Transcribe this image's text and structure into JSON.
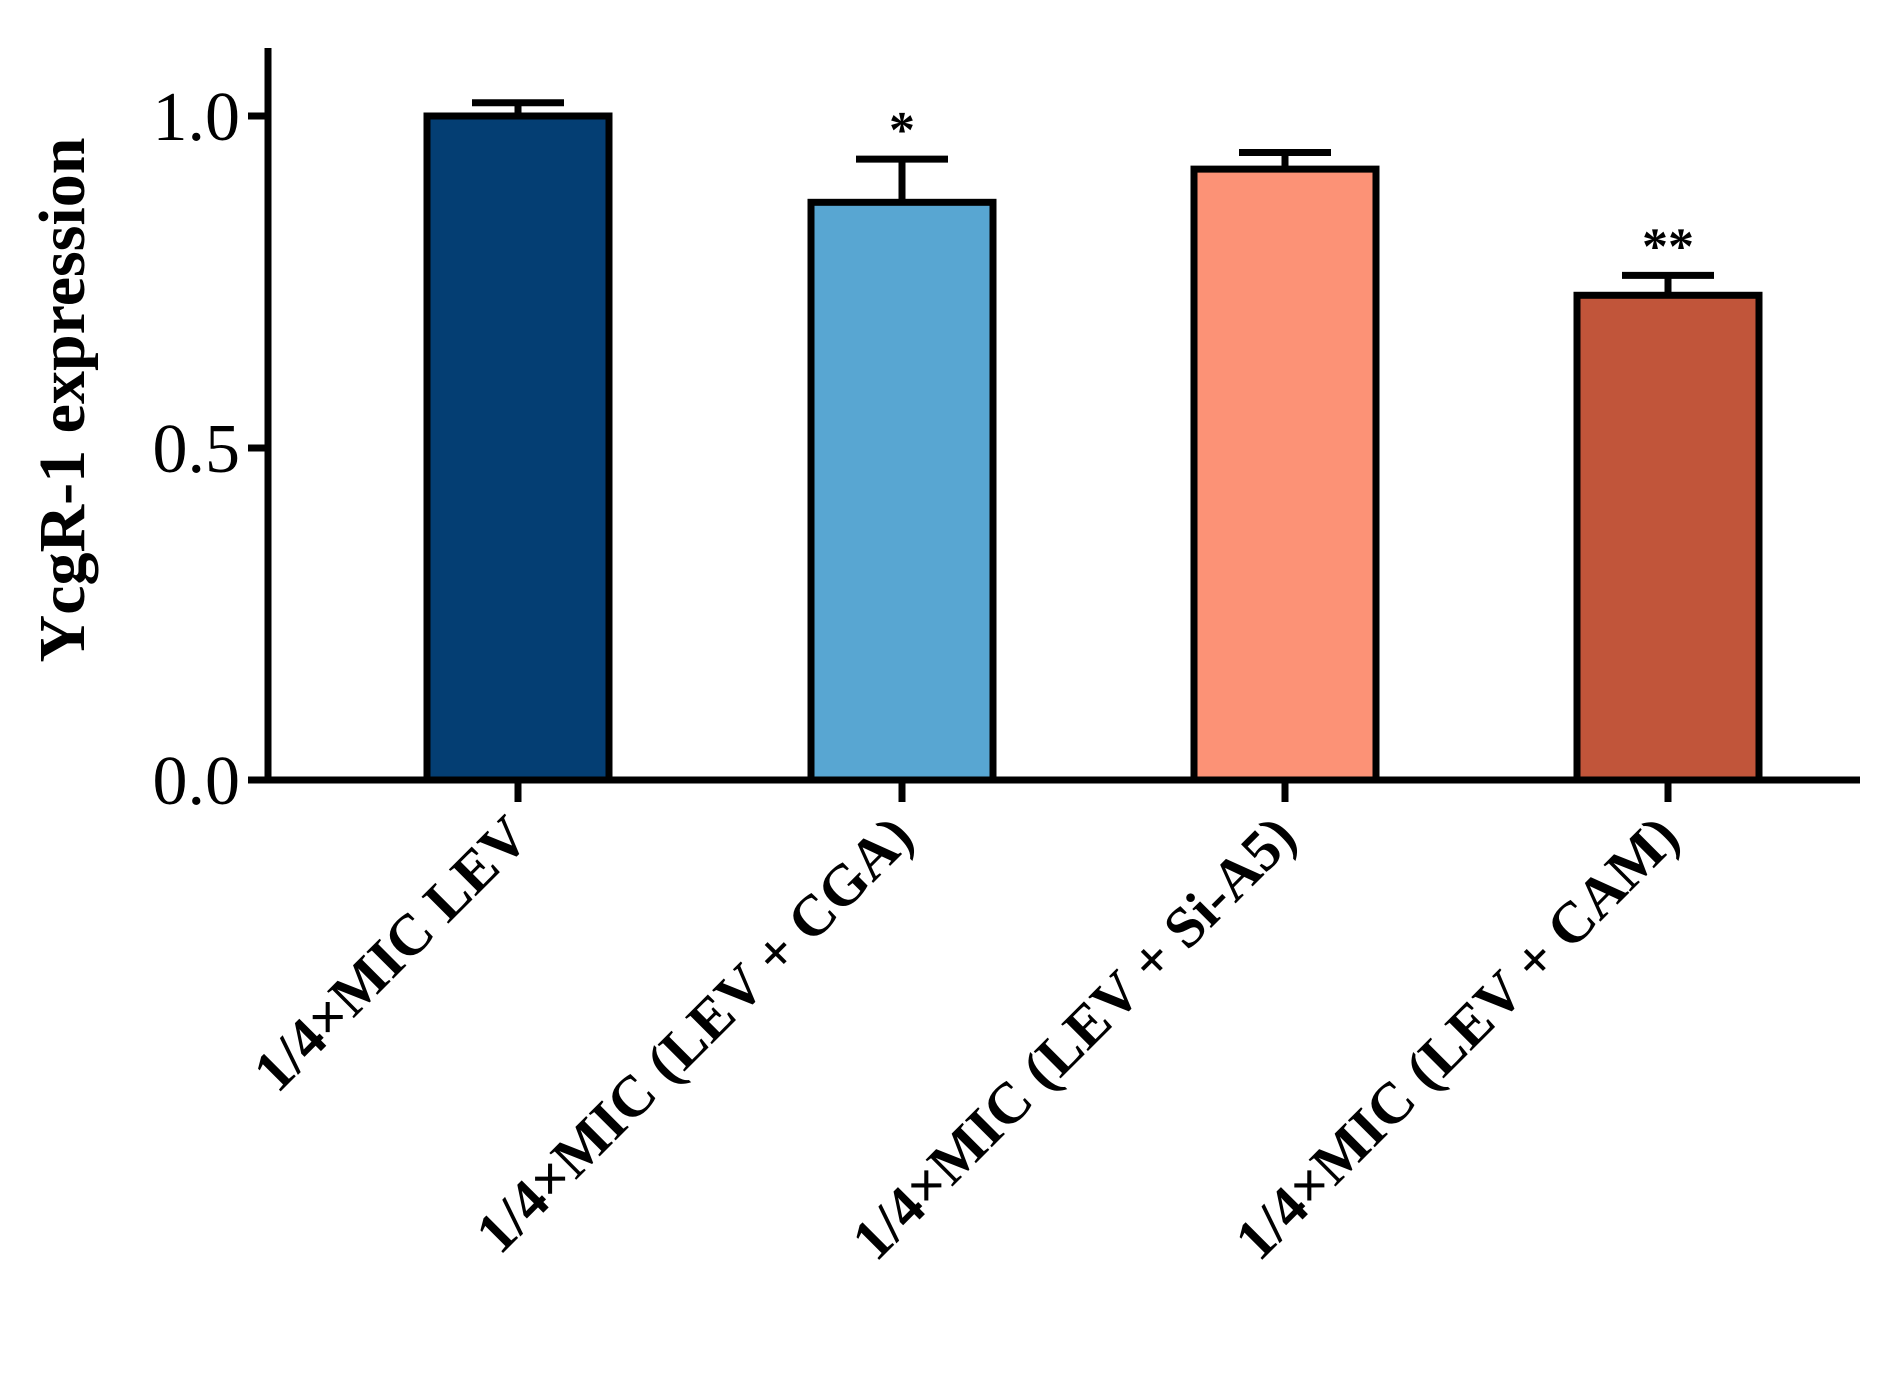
{
  "chart_data": {
    "type": "bar",
    "ylabel": "YcgR-1 expression",
    "xlabel": "",
    "ylim": [
      0,
      1.1
    ],
    "yticks": [
      0.0,
      0.5,
      1.0
    ],
    "ytick_labels": [
      "0.0",
      "0.5",
      "1.0"
    ],
    "categories": [
      "1/4×MIC LEV",
      "1/4×MIC (LEV + CGA)",
      "1/4×MIC (LEV + Si-A5)",
      "1/4×MIC (LEV + CAM)"
    ],
    "values": [
      1.0,
      0.87,
      0.92,
      0.73
    ],
    "errors": [
      0.02,
      0.065,
      0.025,
      0.03
    ],
    "significance": [
      "",
      "*",
      "",
      "**"
    ],
    "colors": [
      "#043e73",
      "#58a6d2",
      "#fc9276",
      "#c1553a"
    ],
    "grid": false,
    "legend": "none"
  }
}
